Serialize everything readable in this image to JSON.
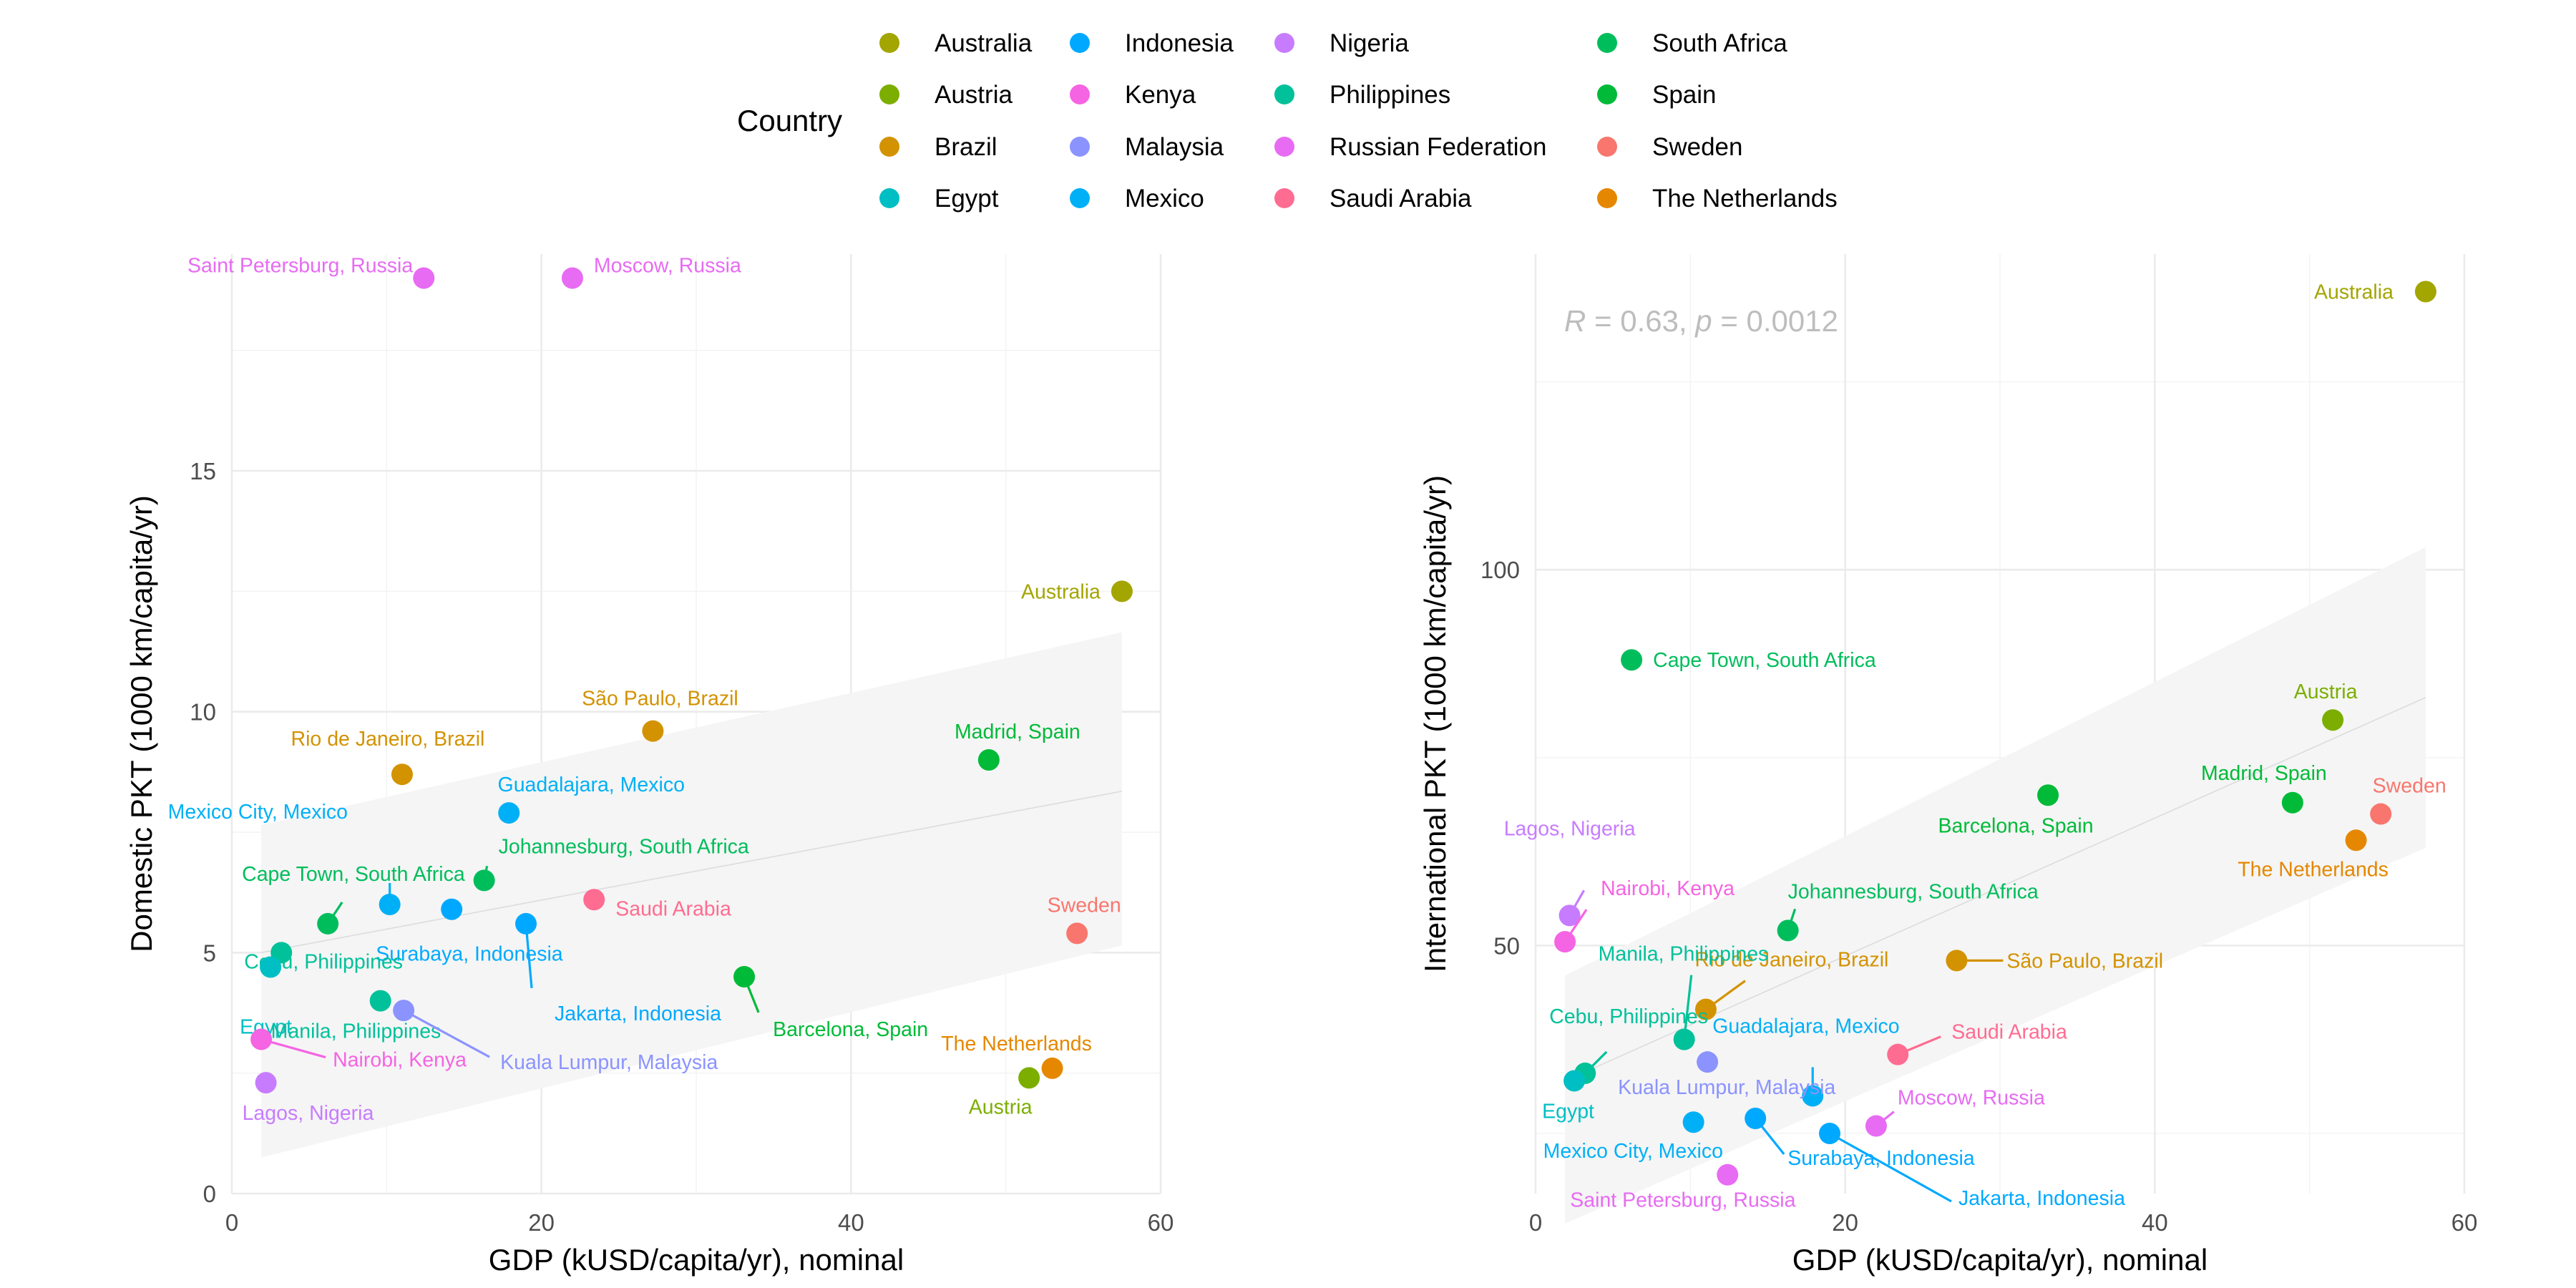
{
  "legend": {
    "title": "Country",
    "entries": [
      {
        "name": "Australia",
        "color": "#A3A500"
      },
      {
        "name": "Austria",
        "color": "#7CAE00"
      },
      {
        "name": "Brazil",
        "color": "#D39200"
      },
      {
        "name": "Egypt",
        "color": "#00BFC4"
      },
      {
        "name": "Indonesia",
        "color": "#00A9FF"
      },
      {
        "name": "Kenya",
        "color": "#F564E3"
      },
      {
        "name": "Malaysia",
        "color": "#8B93FF"
      },
      {
        "name": "Mexico",
        "color": "#00B0F6"
      },
      {
        "name": "Nigeria",
        "color": "#C77CFF"
      },
      {
        "name": "Philippines",
        "color": "#00C19A"
      },
      {
        "name": "Russian Federation",
        "color": "#E76BF3"
      },
      {
        "name": "Saudi Arabia",
        "color": "#FF6C91"
      },
      {
        "name": "South Africa",
        "color": "#00BD5C"
      },
      {
        "name": "Spain",
        "color": "#00BA38"
      },
      {
        "name": "Sweden",
        "color": "#F8766D"
      },
      {
        "name": "The Netherlands",
        "color": "#E58700"
      }
    ]
  },
  "chart_data": [
    {
      "type": "scatter",
      "xlabel": "GDP (kUSD/capita/yr), nominal",
      "ylabel": "Domestic PKT (1000 km/capita/yr)",
      "xlim": [
        0,
        60
      ],
      "ylim": [
        0,
        19.5
      ],
      "xticks": [
        "0",
        "20",
        "40",
        "60"
      ],
      "yticks": [
        "0",
        "5",
        "10",
        "15"
      ],
      "trend": {
        "x": [
          1.9,
          57.5
        ],
        "y": [
          5.0,
          8.35
        ]
      },
      "band": {
        "x": [
          1.9,
          57.5
        ],
        "upper": [
          7.65,
          11.65
        ],
        "lower": [
          0.75,
          5.15
        ]
      },
      "points": [
        {
          "label": "Saint Petersburg, Russia",
          "country": "Russian Federation",
          "x": 12.4,
          "y": 19.0
        },
        {
          "label": "Moscow, Russia",
          "country": "Russian Federation",
          "x": 22.0,
          "y": 19.0
        },
        {
          "label": "Australia",
          "country": "Australia",
          "x": 57.5,
          "y": 12.5
        },
        {
          "label": "Rio de Janeiro, Brazil",
          "country": "Brazil",
          "x": 11.0,
          "y": 8.7
        },
        {
          "label": "São Paulo, Brazil",
          "country": "Brazil",
          "x": 27.2,
          "y": 9.6
        },
        {
          "label": "Madrid, Spain",
          "country": "Spain",
          "x": 48.9,
          "y": 9.0
        },
        {
          "label": "Guadalajara, Mexico",
          "country": "Mexico",
          "x": 17.9,
          "y": 7.9
        },
        {
          "label": "Mexico City, Mexico",
          "country": "Mexico",
          "x": 10.2,
          "y": 6.0
        },
        {
          "label": "Johannesburg, South Africa",
          "country": "South Africa",
          "x": 16.3,
          "y": 6.5
        },
        {
          "label": "Cape Town, South Africa",
          "country": "South Africa",
          "x": 6.2,
          "y": 5.6
        },
        {
          "label": "Surabaya, Indonesia",
          "country": "Indonesia",
          "x": 14.2,
          "y": 5.9
        },
        {
          "label": "Jakarta, Indonesia",
          "country": "Indonesia",
          "x": 19.0,
          "y": 5.6
        },
        {
          "label": "Saudi Arabia",
          "country": "Saudi Arabia",
          "x": 23.4,
          "y": 6.1
        },
        {
          "label": "Sweden",
          "country": "Sweden",
          "x": 54.6,
          "y": 5.4
        },
        {
          "label": "Cebu, Philippines",
          "country": "Philippines",
          "x": 3.2,
          "y": 5.0
        },
        {
          "label": "Egypt",
          "country": "Egypt",
          "x": 2.5,
          "y": 4.7
        },
        {
          "label": "Manila, Philippines",
          "country": "Philippines",
          "x": 9.6,
          "y": 4.0
        },
        {
          "label": "Barcelona, Spain",
          "country": "Spain",
          "x": 33.1,
          "y": 4.5
        },
        {
          "label": "Kuala Lumpur, Malaysia",
          "country": "Malaysia",
          "x": 11.1,
          "y": 3.8
        },
        {
          "label": "Nairobi, Kenya",
          "country": "Kenya",
          "x": 1.9,
          "y": 3.2
        },
        {
          "label": "Lagos, Nigeria",
          "country": "Nigeria",
          "x": 2.2,
          "y": 2.3
        },
        {
          "label": "The Netherlands",
          "country": "The Netherlands",
          "x": 53.0,
          "y": 2.6
        },
        {
          "label": "Austria",
          "country": "Austria",
          "x": 51.5,
          "y": 2.4
        }
      ]
    },
    {
      "type": "scatter",
      "xlabel": "GDP (kUSD/capita/yr), nominal",
      "ylabel": "International PKT (1000 km/capita/yr)",
      "xlim": [
        0,
        60
      ],
      "ylim": [
        17,
        142
      ],
      "xticks": [
        "0",
        "20",
        "40",
        "60"
      ],
      "yticks": [
        "50",
        "100"
      ],
      "stat": "R = 0.63, p = 0.0012",
      "trend": {
        "x": [
          1.9,
          57.5
        ],
        "y": [
          32.0,
          83.0
        ]
      },
      "band": {
        "x": [
          1.9,
          57.5
        ],
        "upper": [
          46.0,
          103.0
        ],
        "lower": [
          13.0,
          63.0
        ]
      },
      "points": [
        {
          "label": "Australia",
          "country": "Australia",
          "x": 57.5,
          "y": 137.0
        },
        {
          "label": "Cape Town, South Africa",
          "country": "South Africa",
          "x": 6.2,
          "y": 88.0
        },
        {
          "label": "Austria",
          "country": "Austria",
          "x": 51.5,
          "y": 80.0
        },
        {
          "label": "Madrid, Spain",
          "country": "Spain",
          "x": 48.9,
          "y": 69.0
        },
        {
          "label": "Sweden",
          "country": "Sweden",
          "x": 54.6,
          "y": 67.5
        },
        {
          "label": "The Netherlands",
          "country": "The Netherlands",
          "x": 53.0,
          "y": 64.0
        },
        {
          "label": "Barcelona, Spain",
          "country": "Spain",
          "x": 33.1,
          "y": 70.0
        },
        {
          "label": "Lagos, Nigeria",
          "country": "Nigeria",
          "x": 2.2,
          "y": 54.0
        },
        {
          "label": "Nairobi, Kenya",
          "country": "Kenya",
          "x": 1.9,
          "y": 50.5
        },
        {
          "label": "Johannesburg, South Africa",
          "country": "South Africa",
          "x": 16.3,
          "y": 52.0
        },
        {
          "label": "São Paulo, Brazil",
          "country": "Brazil",
          "x": 27.2,
          "y": 48.0
        },
        {
          "label": "Rio de Janeiro, Brazil",
          "country": "Brazil",
          "x": 11.0,
          "y": 41.5
        },
        {
          "label": "Manila, Philippines",
          "country": "Philippines",
          "x": 9.6,
          "y": 37.5
        },
        {
          "label": "Cebu, Philippines",
          "country": "Philippines",
          "x": 3.2,
          "y": 33.0
        },
        {
          "label": "Egypt",
          "country": "Egypt",
          "x": 2.5,
          "y": 32.0
        },
        {
          "label": "Guadalajara, Mexico",
          "country": "Mexico",
          "x": 17.9,
          "y": 30.0
        },
        {
          "label": "Saudi Arabia",
          "country": "Saudi Arabia",
          "x": 23.4,
          "y": 35.5
        },
        {
          "label": "Kuala Lumpur, Malaysia",
          "country": "Malaysia",
          "x": 11.1,
          "y": 34.5
        },
        {
          "label": "Mexico City, Mexico",
          "country": "Mexico",
          "x": 10.2,
          "y": 26.5
        },
        {
          "label": "Surabaya, Indonesia",
          "country": "Indonesia",
          "x": 14.2,
          "y": 27.0
        },
        {
          "label": "Jakarta, Indonesia",
          "country": "Indonesia",
          "x": 19.0,
          "y": 25.0
        },
        {
          "label": "Moscow, Russia",
          "country": "Russian Federation",
          "x": 22.0,
          "y": 26.0
        },
        {
          "label": "Saint Petersburg, Russia",
          "country": "Russian Federation",
          "x": 12.4,
          "y": 19.5
        }
      ]
    }
  ]
}
